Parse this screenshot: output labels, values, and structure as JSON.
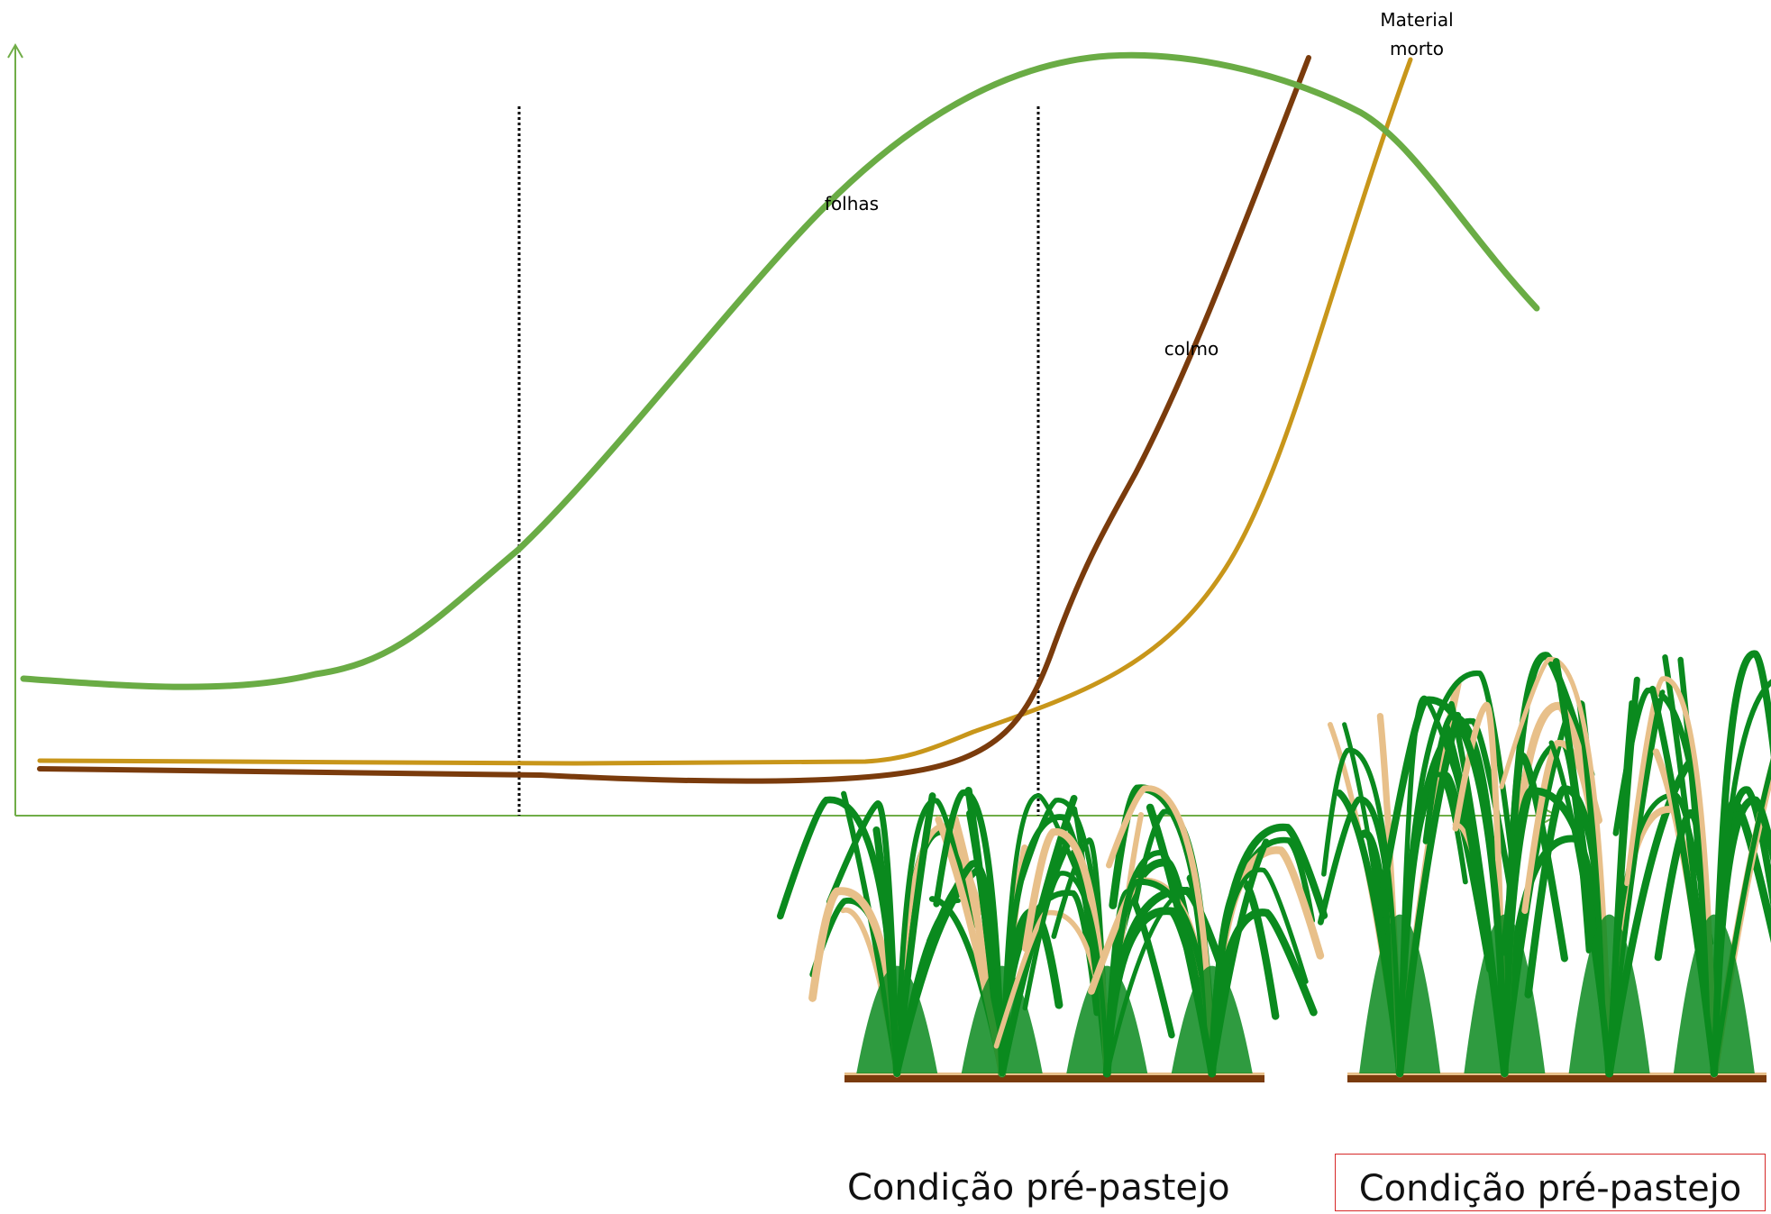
{
  "chart_data": {
    "type": "line",
    "series": [
      {
        "name": "folhas",
        "color": "#6aac45"
      },
      {
        "name": "colmo",
        "color": "#7a3b0c"
      },
      {
        "name": "Material morto",
        "color": "#c8961a"
      }
    ],
    "annotations": [
      "folhas",
      "colmo",
      "Material morto"
    ],
    "vertical_markers": 2,
    "axis_color": "#70ad47"
  },
  "labels": {
    "folhas": "folhas",
    "colmo": "colmo",
    "material_line1": "Material",
    "material_line2": "morto"
  },
  "captions": {
    "left": "Condição pré-pastejo",
    "right": "Condição pré-pastejo"
  },
  "colors": {
    "leaves": "#6aac45",
    "stem": "#7a3b0c",
    "dead": "#c8961a",
    "grass": "#0a8a1e",
    "grass_light": "#e8c08a",
    "soil": "#7a3b0c",
    "highlight_box": "#d62828"
  }
}
